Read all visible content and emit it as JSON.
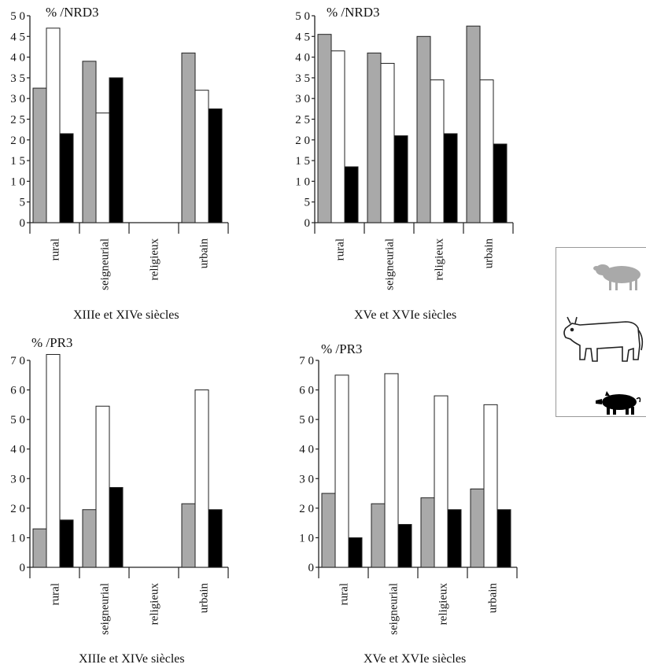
{
  "colors": {
    "sheep": "#a9a9a9",
    "cattle": "#ffffff",
    "pig": "#000000",
    "outline": "#222222"
  },
  "legend": {
    "items": [
      {
        "animal": "sheep",
        "icon": "sheep-icon",
        "color": "#a9a9a9"
      },
      {
        "animal": "cattle",
        "icon": "cow-icon",
        "color": "#ffffff"
      },
      {
        "animal": "pig",
        "icon": "pig-icon",
        "color": "#000000"
      }
    ]
  },
  "chart_data": [
    {
      "type": "bar",
      "unit_label": "% /NRD3",
      "caption": "XIIIe et XIVe siècles",
      "categories": [
        "rural",
        "seigneurial",
        "religieux",
        "urbain"
      ],
      "yticks": [
        "0",
        "5",
        "1 0",
        "1 5",
        "2 0",
        "2 5",
        "3 0",
        "3 5",
        "4 0",
        "4 5",
        "5 0"
      ],
      "ylim": [
        0,
        50
      ],
      "series": [
        {
          "values": [
            32.5,
            39,
            null,
            41
          ]
        },
        {
          "values": [
            47,
            26.5,
            null,
            32
          ]
        },
        {
          "values": [
            21.5,
            35,
            null,
            27.5
          ]
        }
      ]
    },
    {
      "type": "bar",
      "unit_label": "% /NRD3",
      "caption": "XVe et XVIe siècles",
      "categories": [
        "rural",
        "seigneurial",
        "religieux",
        "urbain"
      ],
      "yticks": [
        "0",
        "5",
        "1 0",
        "1 5",
        "2 0",
        "2 5",
        "3 0",
        "3 5",
        "4 0",
        "4 5",
        "5 0"
      ],
      "ylim": [
        0,
        50
      ],
      "series": [
        {
          "values": [
            45.5,
            41,
            45,
            47.5
          ]
        },
        {
          "values": [
            41.5,
            38.5,
            34.5,
            34.5
          ]
        },
        {
          "values": [
            13.5,
            21,
            21.5,
            19
          ]
        }
      ]
    },
    {
      "type": "bar",
      "unit_label": "% /PR3",
      "caption": "XIIIe et XIVe siècles",
      "categories": [
        "rural",
        "seigneurial",
        "religieux",
        "urbain"
      ],
      "yticks": [
        "0",
        "1 0",
        "2 0",
        "3 0",
        "4 0",
        "5 0",
        "6 0",
        "7 0"
      ],
      "ylim": [
        0,
        70
      ],
      "series": [
        {
          "values": [
            13,
            19.5,
            null,
            21.5
          ]
        },
        {
          "values": [
            72,
            54.5,
            null,
            60
          ]
        },
        {
          "values": [
            16,
            27,
            null,
            19.5
          ]
        }
      ]
    },
    {
      "type": "bar",
      "unit_label": "% /PR3",
      "caption": "XVe et XVIe siècles",
      "categories": [
        "rural",
        "seigneurial",
        "religieux",
        "urbain"
      ],
      "yticks": [
        "0",
        "1 0",
        "2 0",
        "3 0",
        "4 0",
        "5 0",
        "6 0",
        "7 0"
      ],
      "ylim": [
        0,
        70
      ],
      "series": [
        {
          "values": [
            25,
            21.5,
            23.5,
            26.5
          ]
        },
        {
          "values": [
            65,
            65.5,
            58,
            55
          ]
        },
        {
          "values": [
            10,
            14.5,
            19.5,
            19.5
          ]
        }
      ]
    }
  ]
}
